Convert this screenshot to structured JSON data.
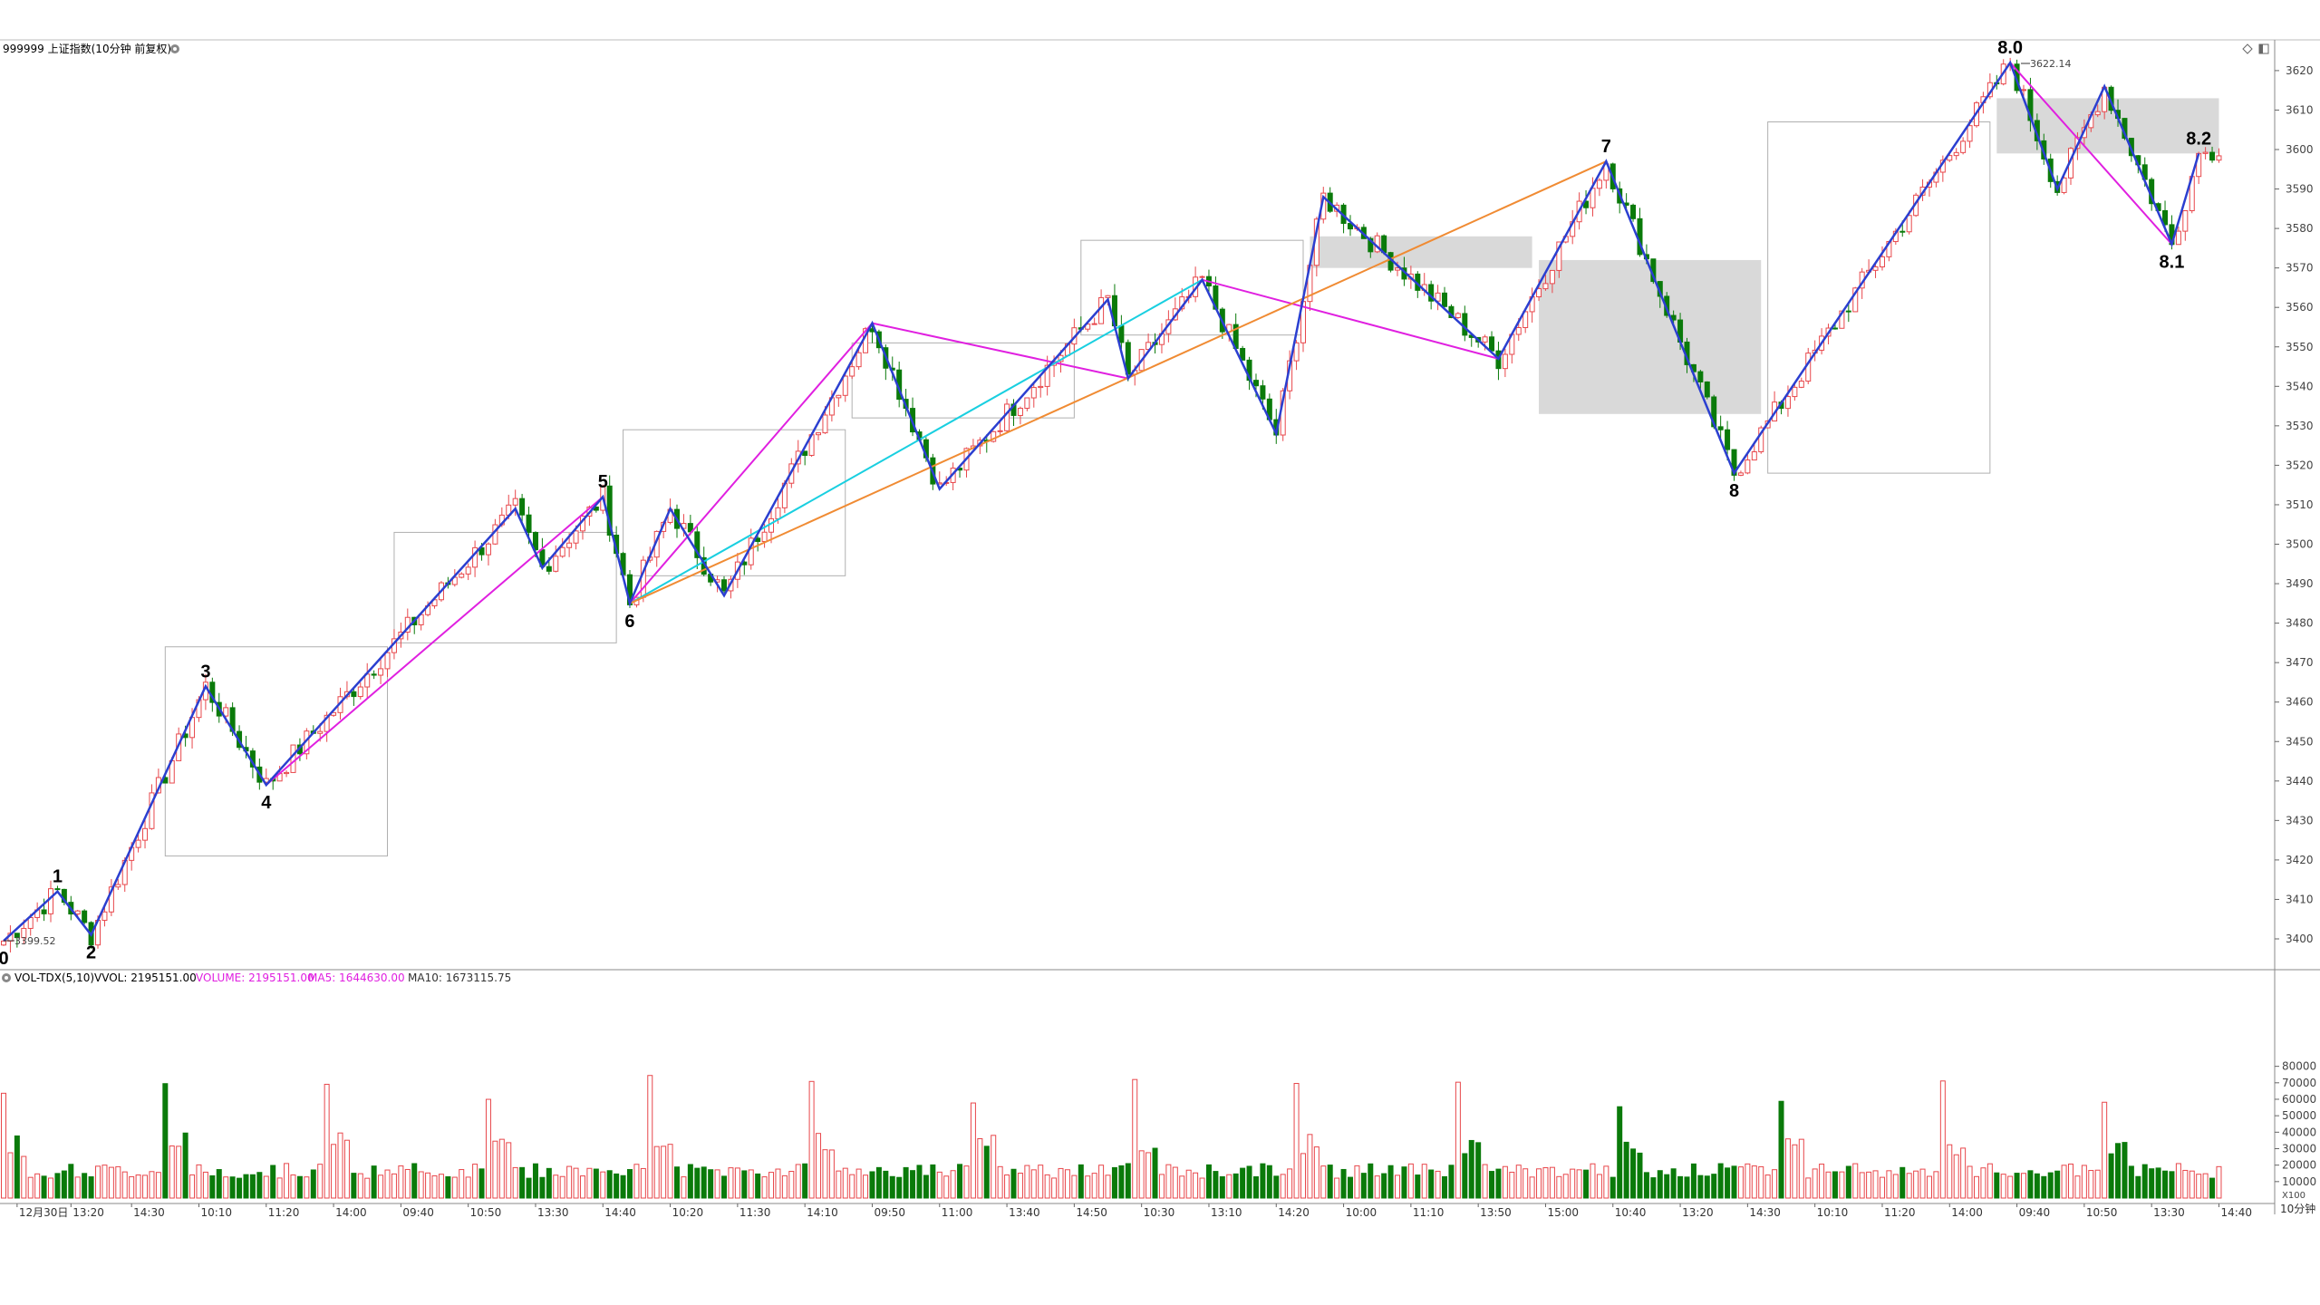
{
  "header": {
    "security": "999999 上证指数(10分钟 前复权)",
    "vol_title": "VOL-TDX(5,10)",
    "vvol": "VVOL: 2195151.00",
    "volume": "VOLUME: 2195151.00",
    "ma5": "MA5: 1644630.00",
    "ma10": "MA10: 1673115.75"
  },
  "icons": {
    "header_menu": "circle-menu-icon",
    "vol_menu": "circle-menu-icon",
    "top_right_1": "diamond-icon",
    "top_right_2": "window-icon"
  },
  "markers": {
    "low": "3399.52",
    "high": "3622.14"
  },
  "period_label": "10分钟",
  "vol_unit": "X100",
  "colors": {
    "up": "#e8474b",
    "down": "#0a7a0a",
    "wave_blue": "#2b3fd0",
    "magenta": "#e020e0",
    "cyan": "#19cfe0",
    "orange": "#f08b33",
    "box_fill": "#d9d9d9"
  },
  "chart_data": {
    "type": "candlestick",
    "price_axis": {
      "ticks": [
        3400,
        3410,
        3420,
        3430,
        3440,
        3450,
        3460,
        3470,
        3480,
        3490,
        3500,
        3510,
        3520,
        3530,
        3540,
        3550,
        3560,
        3570,
        3580,
        3590,
        3600,
        3610,
        3620
      ],
      "ylim": [
        3394,
        3626
      ]
    },
    "volume_axis": {
      "ticks": [
        10000,
        20000,
        30000,
        40000,
        50000,
        60000,
        70000,
        80000
      ],
      "ylim": [
        0,
        83000
      ]
    },
    "time_labels": [
      {
        "i": 2,
        "t": "12月30日"
      },
      {
        "i": 10,
        "t": "13:20"
      },
      {
        "i": 19,
        "t": "14:30"
      },
      {
        "i": 29,
        "t": "10:10"
      },
      {
        "i": 39,
        "t": "11:20"
      },
      {
        "i": 49,
        "t": "14:00"
      },
      {
        "i": 59,
        "t": "09:40"
      },
      {
        "i": 69,
        "t": "10:50"
      },
      {
        "i": 79,
        "t": "13:30"
      },
      {
        "i": 89,
        "t": "14:40"
      },
      {
        "i": 99,
        "t": "10:20"
      },
      {
        "i": 109,
        "t": "11:30"
      },
      {
        "i": 119,
        "t": "14:10"
      },
      {
        "i": 129,
        "t": "09:50"
      },
      {
        "i": 139,
        "t": "11:00"
      },
      {
        "i": 149,
        "t": "13:40"
      },
      {
        "i": 159,
        "t": "14:50"
      },
      {
        "i": 169,
        "t": "10:30"
      },
      {
        "i": 179,
        "t": "13:10"
      },
      {
        "i": 189,
        "t": "14:20"
      },
      {
        "i": 199,
        "t": "10:00"
      },
      {
        "i": 209,
        "t": "11:10"
      },
      {
        "i": 219,
        "t": "13:50"
      },
      {
        "i": 229,
        "t": "15:00"
      },
      {
        "i": 239,
        "t": "10:40"
      },
      {
        "i": 249,
        "t": "13:20"
      },
      {
        "i": 259,
        "t": "14:30"
      },
      {
        "i": 269,
        "t": "10:10"
      },
      {
        "i": 279,
        "t": "11:20"
      },
      {
        "i": 289,
        "t": "14:00"
      },
      {
        "i": 299,
        "t": "09:40"
      },
      {
        "i": 309,
        "t": "10:50"
      },
      {
        "i": 319,
        "t": "13:30"
      },
      {
        "i": 329,
        "t": "14:40"
      }
    ],
    "waves": [
      {
        "label": "0",
        "i": 0,
        "p": 3399.5
      },
      {
        "label": "1",
        "i": 8,
        "p": 3412
      },
      {
        "label": "2",
        "i": 13,
        "p": 3401
      },
      {
        "label": "3",
        "i": 30,
        "p": 3464
      },
      {
        "label": "4",
        "i": 39,
        "p": 3439
      },
      {
        "label": "5",
        "i": 89,
        "p": 3512
      },
      {
        "label": "6",
        "i": 93,
        "p": 3485
      },
      {
        "label": "7",
        "i": 238,
        "p": 3597
      },
      {
        "label": "8",
        "i": 257,
        "p": 3518
      },
      {
        "label": "8.0",
        "i": 298,
        "p": 3622
      },
      {
        "label": "8.1",
        "i": 322,
        "p": 3576
      },
      {
        "label": "8.2",
        "i": 326,
        "p": 3599
      }
    ],
    "blue_zigzag": [
      [
        0,
        3399.5
      ],
      [
        8,
        3412
      ],
      [
        13,
        3401
      ],
      [
        30,
        3464
      ],
      [
        39,
        3439
      ],
      [
        76,
        3509
      ],
      [
        80,
        3494
      ],
      [
        89,
        3512
      ],
      [
        93,
        3485
      ],
      [
        99,
        3509
      ],
      [
        107,
        3487
      ],
      [
        129,
        3556
      ],
      [
        139,
        3514
      ],
      [
        164,
        3562
      ],
      [
        167,
        3542
      ],
      [
        178,
        3567
      ],
      [
        189,
        3528
      ],
      [
        196,
        3588
      ],
      [
        222,
        3547
      ],
      [
        238,
        3597
      ],
      [
        257,
        3518
      ],
      [
        298,
        3622
      ],
      [
        305,
        3590
      ],
      [
        312,
        3616
      ],
      [
        322,
        3576
      ],
      [
        326,
        3599
      ]
    ],
    "magenta_lines": [
      [
        [
          39,
          3439
        ],
        [
          89,
          3512
        ]
      ],
      [
        [
          93,
          3485
        ],
        [
          129,
          3556
        ],
        [
          167,
          3542
        ],
        [
          178,
          3567
        ],
        [
          222,
          3547
        ]
      ],
      [
        [
          298,
          3622
        ],
        [
          322,
          3576
        ]
      ]
    ],
    "cyan_line": [
      [
        93,
        3485
      ],
      [
        178,
        3567
      ]
    ],
    "orange_line": [
      [
        93,
        3485
      ],
      [
        238,
        3597
      ]
    ],
    "boxes": [
      {
        "i1": 24,
        "i2": 57,
        "p1": 3474,
        "p2": 3421,
        "filled": false
      },
      {
        "i1": 58,
        "i2": 91,
        "p1": 3503,
        "p2": 3475,
        "filled": false
      },
      {
        "i1": 92,
        "i2": 125,
        "p1": 3529,
        "p2": 3492,
        "filled": false
      },
      {
        "i1": 126,
        "i2": 159,
        "p1": 3551,
        "p2": 3532,
        "filled": false
      },
      {
        "i1": 160,
        "i2": 193,
        "p1": 3577,
        "p2": 3553,
        "filled": false
      },
      {
        "i1": 194,
        "i2": 227,
        "p1": 3578,
        "p2": 3570,
        "filled": true
      },
      {
        "i1": 228,
        "i2": 261,
        "p1": 3572,
        "p2": 3533,
        "filled": true
      },
      {
        "i1": 262,
        "i2": 295,
        "p1": 3607,
        "p2": 3518,
        "filled": false
      },
      {
        "i1": 296,
        "i2": 329,
        "p1": 3613,
        "p2": 3599,
        "filled": true
      }
    ]
  }
}
